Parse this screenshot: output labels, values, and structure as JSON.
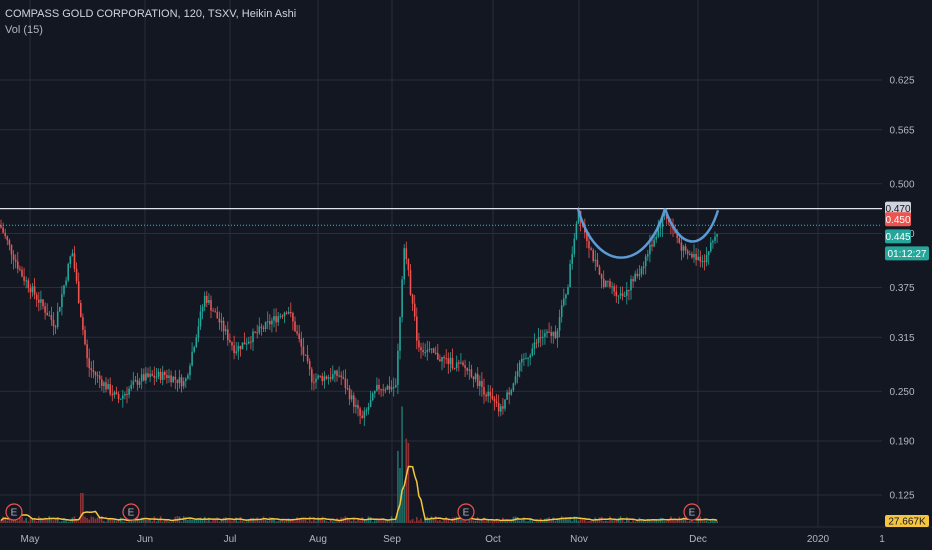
{
  "header": {
    "title": "COMPASS GOLD CORPORATION, 120, TSXV, Heikin Ashi",
    "indicator": "Vol (15)"
  },
  "colors": {
    "background": "#131722",
    "grid": "#2a2e39",
    "up": "#26a69a",
    "down": "#ef5350",
    "resistance": "#e0e3eb",
    "cup": "#5b9bd5",
    "volume_ma": "#f5c542",
    "dotted_line": "#26c6da"
  },
  "chart_data": {
    "type": "candlestick",
    "title": "COMPASS GOLD CORPORATION, 120, TSXV, Heikin Ashi",
    "x_ticks": [
      "May",
      "Jun",
      "Jul",
      "Aug",
      "Sep",
      "Oct",
      "Nov",
      "Dec",
      "2020",
      "1"
    ],
    "y_ticks": [
      "0.625",
      "0.565",
      "0.500",
      "0.440",
      "0.375",
      "0.315",
      "0.250",
      "0.190",
      "0.125"
    ],
    "ylim": [
      0.09,
      0.66
    ],
    "grid": true,
    "price_key_points": [
      {
        "x": "early May",
        "y": 0.45
      },
      {
        "x": "mid May",
        "y": 0.33
      },
      {
        "x": "late May",
        "y": 0.42
      },
      {
        "x": "early Jun",
        "y": 0.24
      },
      {
        "x": "mid Jun",
        "y": 0.27
      },
      {
        "x": "early Jul",
        "y": 0.36
      },
      {
        "x": "mid Jul",
        "y": 0.3
      },
      {
        "x": "late Jul",
        "y": 0.35
      },
      {
        "x": "early Aug",
        "y": 0.26
      },
      {
        "x": "late Aug",
        "y": 0.22
      },
      {
        "x": "early Sep",
        "y": 0.26
      },
      {
        "x": "Sep 5",
        "y": 0.43
      },
      {
        "x": "mid Sep",
        "y": 0.3
      },
      {
        "x": "early Oct",
        "y": 0.25
      },
      {
        "x": "mid Oct",
        "y": 0.29
      },
      {
        "x": "late Oct",
        "y": 0.35
      },
      {
        "x": "early Nov",
        "y": 0.47
      },
      {
        "x": "mid Nov",
        "y": 0.38
      },
      {
        "x": "late Nov",
        "y": 0.46
      },
      {
        "x": "early Dec",
        "y": 0.41
      },
      {
        "x": "Dec 7",
        "y": 0.445
      }
    ],
    "volume_events": [
      {
        "x": "Sep 5",
        "value": "spike"
      }
    ],
    "lines": {
      "resistance": 0.47,
      "last_close": 0.45
    },
    "price_labels": [
      {
        "label": "0.470",
        "kind": "resistance"
      },
      {
        "label": "0.450",
        "kind": "prev"
      },
      {
        "label": "0.445",
        "kind": "last"
      },
      {
        "label": "01:12:27",
        "kind": "countdown"
      }
    ],
    "volume_label": "27.667K",
    "earnings_markers": [
      "E",
      "E",
      "E",
      "E"
    ],
    "pattern": "cup and handle (double cup)"
  }
}
